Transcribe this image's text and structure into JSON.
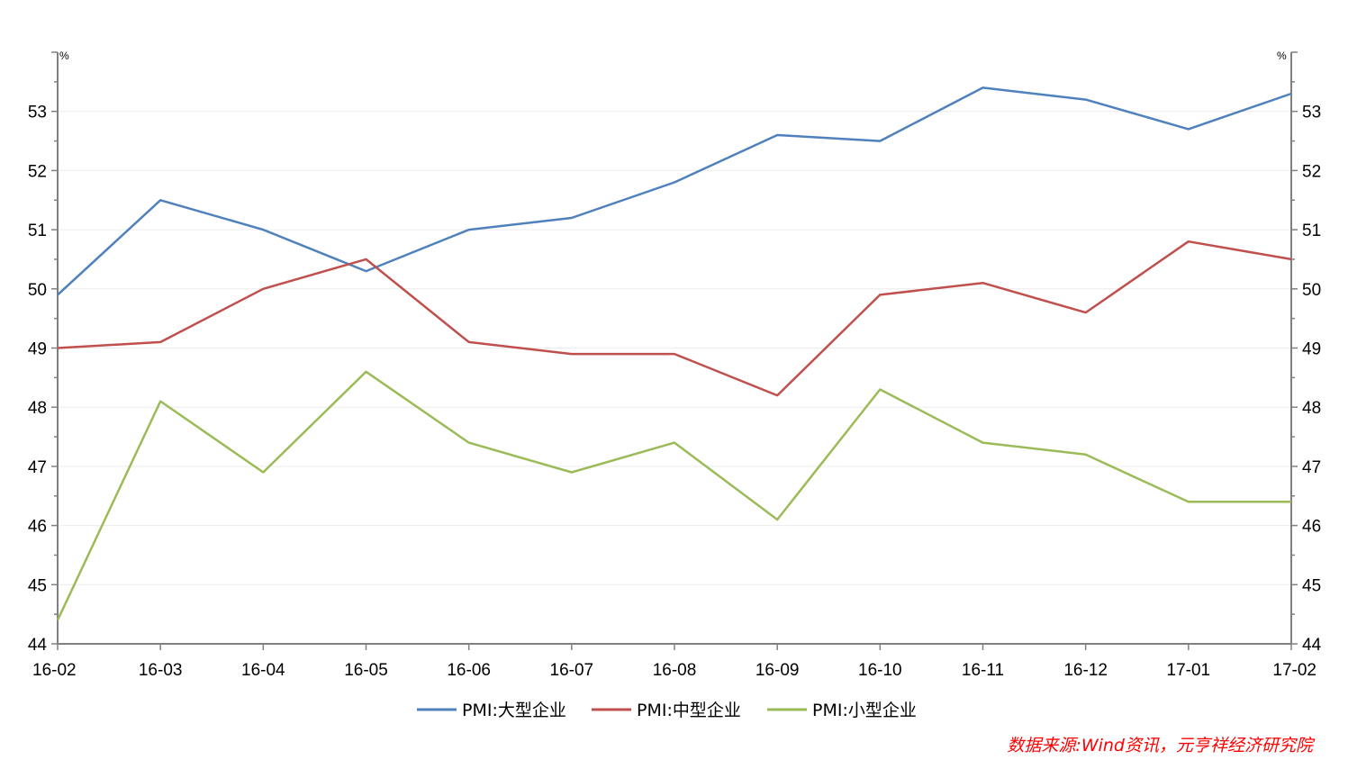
{
  "chart_data": {
    "type": "line",
    "categories": [
      "16-02",
      "16-03",
      "16-04",
      "16-05",
      "16-06",
      "16-07",
      "16-08",
      "16-09",
      "16-10",
      "16-11",
      "16-12",
      "17-01",
      "17-02"
    ],
    "series": [
      {
        "name": "PMI:大型企业",
        "color": "#4f81bd",
        "values": [
          49.9,
          51.5,
          51.0,
          50.3,
          51.0,
          51.2,
          51.8,
          52.6,
          52.5,
          53.4,
          53.2,
          52.7,
          53.3
        ]
      },
      {
        "name": "PMI:中型企业",
        "color": "#c0504d",
        "values": [
          49.0,
          49.1,
          50.0,
          50.5,
          49.1,
          48.9,
          48.9,
          48.2,
          49.9,
          50.1,
          49.6,
          50.8,
          50.5
        ]
      },
      {
        "name": "PMI:小型企业",
        "color": "#9bbb59",
        "values": [
          44.4,
          48.1,
          46.9,
          48.6,
          47.4,
          46.9,
          47.4,
          46.1,
          48.3,
          47.4,
          47.2,
          46.4,
          46.4
        ]
      }
    ],
    "ylim": [
      44,
      54
    ],
    "yticks": [
      44,
      45,
      46,
      47,
      48,
      49,
      50,
      51,
      52,
      53
    ],
    "y_unit_left": "%",
    "y_unit_right": "%",
    "grid": true,
    "legend_position": "bottom-center",
    "source_note": "数据来源:Wind资讯，元亨祥经济研究院"
  }
}
